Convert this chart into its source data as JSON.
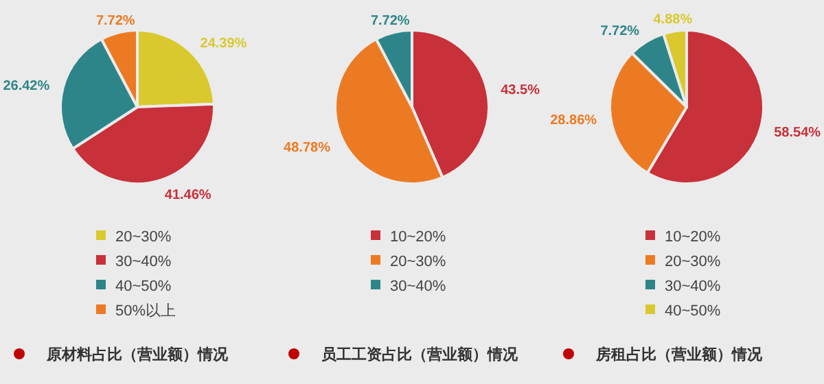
{
  "chart_data": [
    {
      "type": "pie",
      "title": "原材料占比（营业额）情况",
      "categories": [
        "20~30%",
        "30~40%",
        "40~50%",
        "50%以上"
      ],
      "values": [
        24.39,
        41.46,
        26.42,
        7.72
      ],
      "colors": [
        "#d9c92e",
        "#c8303a",
        "#2e8589",
        "#ec7a23"
      ],
      "value_labels": [
        "24.39%",
        "41.46%",
        "26.42%",
        "7.72%"
      ],
      "legend": "bottom"
    },
    {
      "type": "pie",
      "title": "员工工资占比（营业额）情况",
      "categories": [
        "10~20%",
        "20~30%",
        "30~40%"
      ],
      "values": [
        43.5,
        48.78,
        7.72
      ],
      "colors": [
        "#c8303a",
        "#ec7a23",
        "#2e8589"
      ],
      "value_labels": [
        "43.5%",
        "48.78%",
        "7.72%"
      ],
      "legend": "bottom"
    },
    {
      "type": "pie",
      "title": "房租占比（营业额）情况",
      "categories": [
        "10~20%",
        "20~30%",
        "30~40%",
        "40~50%"
      ],
      "values": [
        58.54,
        28.86,
        7.72,
        4.88
      ],
      "colors": [
        "#c8303a",
        "#ec7a23",
        "#2e8589",
        "#d9c92e"
      ],
      "value_labels": [
        "58.54%",
        "28.86%",
        "7.72%",
        "4.88%"
      ],
      "legend": "bottom"
    }
  ]
}
